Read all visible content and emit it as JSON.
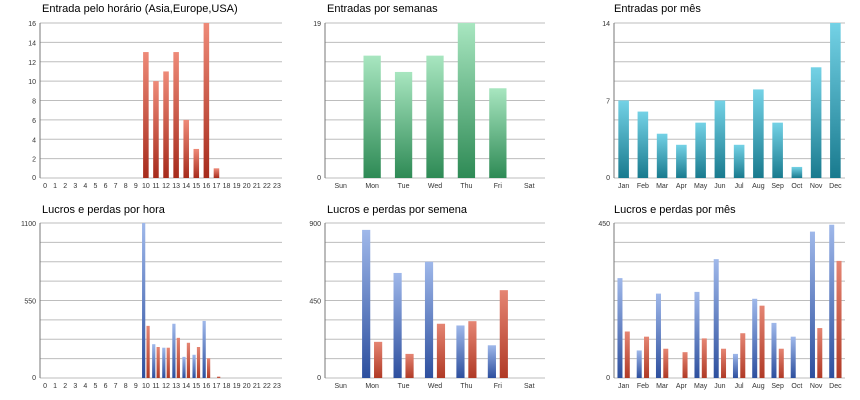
{
  "palette": {
    "red_top": "#ee8a78",
    "red_bottom": "#a62b1c",
    "green_top": "#a8e6c0",
    "green_bottom": "#2e8a55",
    "teal_top": "#74d2e6",
    "teal_bottom": "#197a8e",
    "blue_top": "#9fb8ea",
    "blue_bottom": "#2d4f9e",
    "red2_top": "#e58573",
    "red2_bottom": "#b03a26"
  },
  "chart_data": [
    {
      "id": "entradas-hora",
      "type": "bar",
      "title": "Entrada pelo horário (Asia,Europe,USA)",
      "categories": [
        "0",
        "1",
        "2",
        "3",
        "4",
        "5",
        "6",
        "7",
        "8",
        "9",
        "10",
        "11",
        "12",
        "13",
        "14",
        "15",
        "16",
        "17",
        "18",
        "19",
        "20",
        "21",
        "22",
        "23"
      ],
      "y_ticks": [
        "0",
        "2",
        "4",
        "6",
        "8",
        "10",
        "12",
        "14",
        "16"
      ],
      "ylim": [
        0,
        16
      ],
      "series": [
        {
          "values": [
            0,
            0,
            0,
            0,
            0,
            0,
            0,
            0,
            0,
            0,
            13,
            10,
            11,
            13,
            6,
            3,
            16,
            1,
            0,
            0,
            0,
            0,
            0,
            0
          ],
          "color": "red"
        }
      ]
    },
    {
      "id": "entradas-semana",
      "type": "bar",
      "title": "Entradas por semanas",
      "categories": [
        "Sun",
        "Mon",
        "Tue",
        "Wed",
        "Thu",
        "Fri",
        "Sat"
      ],
      "y_ticks": [
        "0",
        "19"
      ],
      "y_tick_values": [
        0,
        19
      ],
      "ylim": [
        0,
        19
      ],
      "series": [
        {
          "values": [
            0,
            15,
            13,
            15,
            19,
            11,
            0
          ],
          "color": "green"
        }
      ]
    },
    {
      "id": "entradas-mes",
      "type": "bar",
      "title": "Entradas por mês",
      "categories": [
        "Jan",
        "Feb",
        "Mar",
        "Apr",
        "May",
        "Jun",
        "Jul",
        "Aug",
        "Sep",
        "Oct",
        "Nov",
        "Dec"
      ],
      "y_ticks": [
        "0",
        "7",
        "14"
      ],
      "y_tick_values": [
        0,
        7,
        14
      ],
      "ylim": [
        0,
        14
      ],
      "series": [
        {
          "values": [
            7,
            6,
            4,
            3,
            5,
            7,
            3,
            8,
            5,
            1,
            10,
            14
          ],
          "color": "teal"
        }
      ]
    },
    {
      "id": "lucros-hora",
      "type": "bar",
      "title": "Lucros e perdas por hora",
      "categories": [
        "0",
        "1",
        "2",
        "3",
        "4",
        "5",
        "6",
        "7",
        "8",
        "9",
        "10",
        "11",
        "12",
        "13",
        "14",
        "15",
        "16",
        "17",
        "18",
        "19",
        "20",
        "21",
        "22",
        "23"
      ],
      "y_ticks": [
        "0",
        "550",
        "1100"
      ],
      "y_tick_values": [
        0,
        550,
        1100
      ],
      "ylim": [
        0,
        1100
      ],
      "series": [
        {
          "values": [
            0,
            0,
            0,
            0,
            0,
            0,
            0,
            0,
            0,
            0,
            1100,
            240,
            215,
            385,
            150,
            165,
            405,
            0,
            0,
            0,
            0,
            0,
            0,
            0
          ],
          "color": "blue"
        },
        {
          "values": [
            0,
            0,
            0,
            0,
            0,
            0,
            0,
            0,
            0,
            0,
            370,
            220,
            215,
            285,
            250,
            220,
            140,
            10,
            0,
            0,
            0,
            0,
            0,
            0
          ],
          "color": "red2"
        }
      ]
    },
    {
      "id": "lucros-semana",
      "type": "bar",
      "title": "Lucros e perdas por semena",
      "categories": [
        "Sun",
        "Mon",
        "Tue",
        "Wed",
        "Thu",
        "Fri",
        "Sat"
      ],
      "y_ticks": [
        "0",
        "450",
        "900"
      ],
      "y_tick_values": [
        0,
        450,
        900
      ],
      "ylim": [
        0,
        900
      ],
      "series": [
        {
          "values": [
            0,
            860,
            610,
            675,
            305,
            190,
            0
          ],
          "color": "blue"
        },
        {
          "values": [
            0,
            210,
            140,
            315,
            330,
            510,
            0
          ],
          "color": "red2"
        }
      ]
    },
    {
      "id": "lucros-mes",
      "type": "bar",
      "title": "Lucros e perdas por mês",
      "categories": [
        "Jan",
        "Feb",
        "Mar",
        "Apr",
        "May",
        "Jun",
        "Jul",
        "Aug",
        "Sep",
        "Oct",
        "Nov",
        "Dec"
      ],
      "y_ticks": [
        "0",
        "450"
      ],
      "y_tick_values": [
        0,
        450
      ],
      "ylim": [
        0,
        450
      ],
      "series": [
        {
          "values": [
            290,
            80,
            245,
            0,
            250,
            345,
            70,
            230,
            160,
            120,
            425,
            445
          ],
          "color": "blue"
        },
        {
          "values": [
            135,
            120,
            85,
            75,
            115,
            85,
            130,
            210,
            85,
            0,
            145,
            340
          ],
          "color": "red2"
        }
      ]
    }
  ]
}
